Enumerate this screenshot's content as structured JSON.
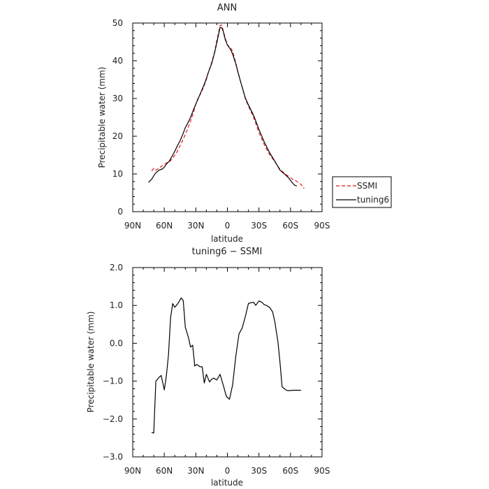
{
  "chart_data": [
    {
      "type": "line",
      "title": "ANN",
      "xlabel": "latitude",
      "ylabel": "Precipitable water (mm)",
      "x_ticks": [
        {
          "value": -90,
          "label": "90N"
        },
        {
          "value": -60,
          "label": "60N"
        },
        {
          "value": -30,
          "label": "30N"
        },
        {
          "value": 0,
          "label": "0"
        },
        {
          "value": 30,
          "label": "30S"
        },
        {
          "value": 60,
          "label": "60S"
        },
        {
          "value": 90,
          "label": "90S"
        }
      ],
      "y_ticks": [
        {
          "value": 0,
          "label": "0"
        },
        {
          "value": 10,
          "label": "10"
        },
        {
          "value": 20,
          "label": "20"
        },
        {
          "value": 30,
          "label": "30"
        },
        {
          "value": 40,
          "label": "40"
        },
        {
          "value": 50,
          "label": "50"
        }
      ],
      "xlim": [
        -90,
        90
      ],
      "ylim": [
        0,
        50
      ],
      "legend_position": "right-bottom, outside",
      "series": [
        {
          "name": "SSMI",
          "color": "#e8141c",
          "dash": "dashed",
          "x": [
            -72,
            -70,
            -68,
            -65,
            -62,
            -58,
            -55,
            -52,
            -48,
            -45,
            -42,
            -38,
            -35,
            -32,
            -30,
            -28,
            -25,
            -22,
            -20,
            -18,
            -15,
            -12,
            -10,
            -8,
            -7,
            -6,
            -5,
            -4,
            -2,
            0,
            3,
            5,
            8,
            10,
            13,
            17,
            20,
            25,
            30,
            35,
            40,
            45,
            50,
            55,
            58,
            60,
            62,
            65,
            70,
            73
          ],
          "y": [
            10.8,
            11.5,
            11.0,
            11.5,
            12.2,
            12.9,
            13.2,
            14.2,
            15.8,
            17.5,
            19.2,
            21.8,
            24.0,
            26.5,
            28.5,
            30.0,
            31.5,
            33.5,
            35.0,
            37.0,
            39.5,
            42.5,
            45.5,
            48.0,
            49.3,
            49.5,
            49.2,
            48.0,
            46.0,
            44.2,
            43.5,
            42.5,
            39.5,
            37.0,
            34.0,
            30.0,
            28.0,
            25.0,
            21.0,
            17.8,
            15.2,
            13.3,
            11.2,
            10.0,
            9.4,
            9.0,
            8.6,
            8.2,
            7.2,
            6.1
          ]
        },
        {
          "name": "tuning6",
          "color": "#000000",
          "dash": "solid",
          "x": [
            -75,
            -72,
            -70,
            -68,
            -65,
            -62,
            -60,
            -58,
            -55,
            -52,
            -50,
            -48,
            -45,
            -42,
            -40,
            -38,
            -35,
            -32,
            -30,
            -28,
            -25,
            -22,
            -20,
            -18,
            -15,
            -12,
            -10,
            -8,
            -7,
            -6,
            -5,
            -4,
            -2,
            0,
            3,
            5,
            8,
            10,
            13,
            17,
            20,
            25,
            30,
            35,
            40,
            45,
            50,
            55,
            58,
            60,
            62,
            64,
            66
          ],
          "y": [
            7.8,
            8.6,
            9.5,
            10.3,
            11.0,
            11.3,
            11.8,
            12.6,
            13.5,
            15.0,
            16.0,
            17.2,
            18.8,
            20.8,
            22.3,
            23.3,
            25.0,
            27.2,
            28.5,
            29.8,
            31.8,
            33.8,
            35.3,
            37.0,
            39.2,
            42.3,
            44.8,
            47.5,
            48.8,
            48.8,
            48.6,
            47.8,
            45.6,
            44.2,
            43.0,
            41.8,
            39.2,
            37.0,
            34.0,
            30.2,
            28.3,
            25.5,
            21.8,
            18.5,
            15.7,
            13.4,
            11.0,
            9.8,
            9.0,
            8.3,
            7.6,
            7.0,
            6.8
          ]
        }
      ]
    },
    {
      "type": "line",
      "title": "tuning6 − SSMI",
      "xlabel": "latitude",
      "ylabel": "Precipitable water (mm)",
      "x_ticks": [
        {
          "value": -90,
          "label": "90N"
        },
        {
          "value": -60,
          "label": "60N"
        },
        {
          "value": -30,
          "label": "30N"
        },
        {
          "value": 0,
          "label": "0"
        },
        {
          "value": 30,
          "label": "30S"
        },
        {
          "value": 60,
          "label": "60S"
        },
        {
          "value": 90,
          "label": "90S"
        }
      ],
      "y_ticks": [
        {
          "value": -3,
          "label": "−3.0"
        },
        {
          "value": -2,
          "label": "−2.0"
        },
        {
          "value": -1,
          "label": "−1.0"
        },
        {
          "value": 0,
          "label": "0.0"
        },
        {
          "value": 1,
          "label": "1.0"
        },
        {
          "value": 2,
          "label": "2.0"
        }
      ],
      "xlim": [
        -90,
        90
      ],
      "ylim": [
        -3,
        2
      ],
      "series": [
        {
          "color": "#000000",
          "dash": "solid",
          "x": [
            -72,
            -70,
            -68,
            -65,
            -63,
            -60,
            -58,
            -56,
            -54,
            -52,
            -50,
            -47,
            -44,
            -42,
            -40,
            -37,
            -35,
            -33,
            -31,
            -29,
            -26,
            -24,
            -22,
            -20,
            -17,
            -15,
            -13,
            -10,
            -7,
            -4,
            -1,
            2,
            5,
            8,
            11,
            14,
            17,
            20,
            22,
            25,
            27,
            30,
            33,
            35,
            37,
            40,
            43,
            45,
            48,
            50,
            52,
            55,
            57,
            60,
            62,
            65,
            67,
            70
          ],
          "y": [
            -2.35,
            -2.37,
            -1.0,
            -0.9,
            -0.85,
            -1.23,
            -0.85,
            -0.3,
            0.68,
            1.05,
            0.95,
            1.05,
            1.2,
            1.13,
            0.42,
            0.15,
            -0.1,
            -0.05,
            -0.6,
            -0.56,
            -0.62,
            -0.62,
            -1.05,
            -0.82,
            -1.02,
            -0.95,
            -0.92,
            -0.97,
            -0.82,
            -1.1,
            -1.4,
            -1.48,
            -1.1,
            -0.35,
            0.25,
            0.4,
            0.7,
            1.05,
            1.07,
            1.08,
            1.0,
            1.12,
            1.08,
            1.02,
            1.0,
            0.95,
            0.83,
            0.58,
            0.05,
            -0.5,
            -1.15,
            -1.22,
            -1.25,
            -1.25,
            -1.24,
            -1.24,
            -1.24,
            -1.24
          ]
        }
      ]
    }
  ]
}
